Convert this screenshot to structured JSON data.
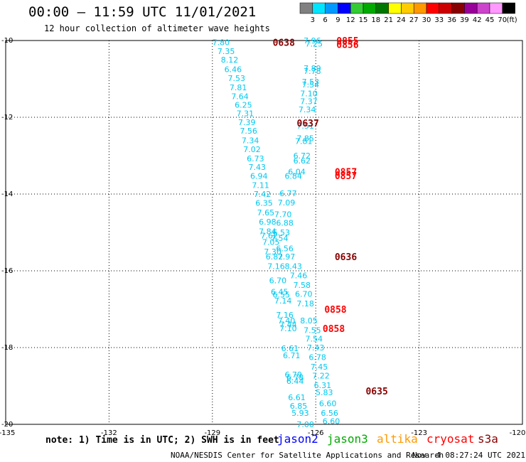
{
  "header": {
    "title": "00:00 – 11:59 UTC 11/01/2021",
    "subtitle": "12 hour collection of altimeter wave heights"
  },
  "legend": {
    "unit": "(ft)",
    "bins": [
      {
        "label": "3",
        "color": "#808080"
      },
      {
        "label": "6",
        "color": "#00e5ff"
      },
      {
        "label": "9",
        "color": "#0099ff"
      },
      {
        "label": "12",
        "color": "#0000ff"
      },
      {
        "label": "15",
        "color": "#33cc33"
      },
      {
        "label": "18",
        "color": "#00aa00"
      },
      {
        "label": "21",
        "color": "#007700"
      },
      {
        "label": "24",
        "color": "#ffff00"
      },
      {
        "label": "27",
        "color": "#ffcc00"
      },
      {
        "label": "30",
        "color": "#ff9900"
      },
      {
        "label": "33",
        "color": "#ff0000"
      },
      {
        "label": "36",
        "color": "#cc0000"
      },
      {
        "label": "39",
        "color": "#880000"
      },
      {
        "label": "42",
        "color": "#990099"
      },
      {
        "label": "45",
        "color": "#cc44cc"
      },
      {
        "label": "70",
        "color": "#ff99ff"
      },
      {
        "label": "",
        "color": "#000000"
      }
    ]
  },
  "footer": {
    "note": "note: 1) Time is in UTC; 2) SWH is in feet",
    "satellites": [
      {
        "name": "jason2",
        "color": "#0000ff"
      },
      {
        "name": "jason3",
        "color": "#00aa00"
      },
      {
        "name": "altika",
        "color": "#ff9900"
      },
      {
        "name": "cryosat",
        "color": "#ff0000"
      },
      {
        "name": "s3a",
        "color": "#880000"
      }
    ],
    "credit": "NOAA/NESDIS Center for Satellite Applications and Research",
    "timestamp": "Nov  4 08:27:24 UTC 2021"
  },
  "chart_data": {
    "type": "scatter",
    "title": "00:00 – 11:59 UTC 11/01/2021",
    "subtitle": "12 hour collection of altimeter wave heights",
    "xlim": [
      -135,
      -120
    ],
    "ylim": [
      -20,
      -10
    ],
    "x_ticks": [
      "-135",
      "-132",
      "-129",
      "-126",
      "-123",
      "-120"
    ],
    "y_ticks": [
      "-10",
      "-12",
      "-14",
      "-16",
      "-18",
      "-20"
    ],
    "grid": true,
    "value_color": "#00c8f0",
    "series": [
      {
        "points": [
          {
            "x": -128.75,
            "y": -10.05,
            "v": "7.80"
          },
          {
            "x": -128.6,
            "y": -10.28,
            "v": "7.35"
          },
          {
            "x": -128.5,
            "y": -10.5,
            "v": "8.12"
          },
          {
            "x": -128.4,
            "y": -10.75,
            "v": "6.46"
          },
          {
            "x": -128.3,
            "y": -10.98,
            "v": "7.53"
          },
          {
            "x": -128.25,
            "y": -11.22,
            "v": "7.81"
          },
          {
            "x": -128.2,
            "y": -11.45,
            "v": "7.64"
          },
          {
            "x": -128.1,
            "y": -11.68,
            "v": "6.25"
          },
          {
            "x": -128.05,
            "y": -11.9,
            "v": "7.31"
          },
          {
            "x": -128.0,
            "y": -12.13,
            "v": "7.39"
          },
          {
            "x": -127.95,
            "y": -12.35,
            "v": "7.56"
          },
          {
            "x": -127.9,
            "y": -12.6,
            "v": "7.34"
          },
          {
            "x": -127.85,
            "y": -12.83,
            "v": "7.02"
          },
          {
            "x": -127.75,
            "y": -13.07,
            "v": "6.73"
          },
          {
            "x": -127.7,
            "y": -13.3,
            "v": "7.43"
          },
          {
            "x": -127.65,
            "y": -13.53,
            "v": "6.94"
          },
          {
            "x": -127.6,
            "y": -13.77,
            "v": "7.11"
          },
          {
            "x": -127.55,
            "y": -14.0,
            "v": "7.42"
          },
          {
            "x": -127.5,
            "y": -14.23,
            "v": "6.35"
          },
          {
            "x": -127.45,
            "y": -14.48,
            "v": "7.65"
          },
          {
            "x": -127.4,
            "y": -14.72,
            "v": "6.98"
          },
          {
            "x": -127.4,
            "y": -14.97,
            "v": "7.84"
          },
          {
            "x": -127.35,
            "y": -15.08,
            "v": "7.62"
          },
          {
            "x": -127.3,
            "y": -15.25,
            "v": "7.05"
          },
          {
            "x": -127.25,
            "y": -15.5,
            "v": "7.30"
          },
          {
            "x": -127.2,
            "y": -15.63,
            "v": "6.82"
          },
          {
            "x": -127.15,
            "y": -15.88,
            "v": "7.16"
          },
          {
            "x": -127.1,
            "y": -16.25,
            "v": "6.70"
          },
          {
            "x": -127.05,
            "y": -16.55,
            "v": "6.45"
          },
          {
            "x": -127.0,
            "y": -16.62,
            "v": "6.55"
          },
          {
            "x": -126.95,
            "y": -16.78,
            "v": "7.14"
          },
          {
            "x": -126.9,
            "y": -17.15,
            "v": "7.16"
          },
          {
            "x": -126.85,
            "y": -17.3,
            "v": "7.40"
          },
          {
            "x": -126.8,
            "y": -17.4,
            "v": "7.44"
          },
          {
            "x": -126.8,
            "y": -17.5,
            "v": "7.10"
          },
          {
            "x": -126.75,
            "y": -18.02,
            "v": "6.61"
          },
          {
            "x": -126.7,
            "y": -18.2,
            "v": "6.71"
          },
          {
            "x": -126.65,
            "y": -18.7,
            "v": "6.79"
          },
          {
            "x": -126.6,
            "y": -18.78,
            "v": "6.78"
          },
          {
            "x": -126.6,
            "y": -18.87,
            "v": "6.44"
          },
          {
            "x": -126.55,
            "y": -19.3,
            "v": "6.61"
          },
          {
            "x": -126.5,
            "y": -19.52,
            "v": "6.85"
          },
          {
            "x": -126.45,
            "y": -19.7,
            "v": "5.93"
          },
          {
            "x": -126.3,
            "y": -20.0,
            "v": "7.00"
          },
          {
            "x": -126.1,
            "y": -10.0,
            "v": "7.96"
          },
          {
            "x": -126.05,
            "y": -10.08,
            "v": "7.25"
          },
          {
            "x": -126.1,
            "y": -10.72,
            "v": "7.89"
          },
          {
            "x": -126.1,
            "y": -10.8,
            "v": "7.78"
          },
          {
            "x": -126.15,
            "y": -11.07,
            "v": "7.53"
          },
          {
            "x": -126.15,
            "y": -11.15,
            "v": "7.54"
          },
          {
            "x": -126.2,
            "y": -11.38,
            "v": "7.10"
          },
          {
            "x": -126.2,
            "y": -11.58,
            "v": "7.37"
          },
          {
            "x": -126.25,
            "y": -11.8,
            "v": "7.34"
          },
          {
            "x": -126.3,
            "y": -12.22,
            "v": "7.51"
          },
          {
            "x": -126.3,
            "y": -12.55,
            "v": "7.85"
          },
          {
            "x": -126.35,
            "y": -12.62,
            "v": "7.81"
          },
          {
            "x": -126.4,
            "y": -13.0,
            "v": "6.72"
          },
          {
            "x": -126.4,
            "y": -13.13,
            "v": "6.62"
          },
          {
            "x": -126.55,
            "y": -13.42,
            "v": "6.04"
          },
          {
            "x": -126.65,
            "y": -13.53,
            "v": "6.84"
          },
          {
            "x": -126.8,
            "y": -13.98,
            "v": "6.77"
          },
          {
            "x": -126.85,
            "y": -14.22,
            "v": "7.09"
          },
          {
            "x": -126.95,
            "y": -14.53,
            "v": "7.70"
          },
          {
            "x": -126.9,
            "y": -14.75,
            "v": "6.88"
          },
          {
            "x": -127.0,
            "y": -15.0,
            "v": "6.53"
          },
          {
            "x": -127.05,
            "y": -15.15,
            "v": "7.54"
          },
          {
            "x": -126.9,
            "y": -15.42,
            "v": "6.56"
          },
          {
            "x": -126.85,
            "y": -15.63,
            "v": "7.97"
          },
          {
            "x": -126.65,
            "y": -15.88,
            "v": "8.43"
          },
          {
            "x": -126.5,
            "y": -16.12,
            "v": "7.46"
          },
          {
            "x": -126.4,
            "y": -16.37,
            "v": "7.58"
          },
          {
            "x": -126.35,
            "y": -16.6,
            "v": "6.70"
          },
          {
            "x": -126.3,
            "y": -16.85,
            "v": "7.18"
          },
          {
            "x": -126.2,
            "y": -17.3,
            "v": "8.05"
          },
          {
            "x": -126.1,
            "y": -17.55,
            "v": "7.55"
          },
          {
            "x": -126.05,
            "y": -17.77,
            "v": "7.54"
          },
          {
            "x": -126.0,
            "y": -18.0,
            "v": "7.43"
          },
          {
            "x": -125.95,
            "y": -18.25,
            "v": "6.78"
          },
          {
            "x": -125.9,
            "y": -18.5,
            "v": "7.45"
          },
          {
            "x": -125.85,
            "y": -18.73,
            "v": "7.22"
          },
          {
            "x": -125.8,
            "y": -18.98,
            "v": "6.31"
          },
          {
            "x": -125.75,
            "y": -19.17,
            "v": "5.83"
          },
          {
            "x": -125.65,
            "y": -19.45,
            "v": "6.60"
          },
          {
            "x": -125.6,
            "y": -19.7,
            "v": "6.56"
          },
          {
            "x": -125.55,
            "y": -19.92,
            "v": "6.60"
          }
        ]
      }
    ],
    "time_labels": [
      {
        "x": -127.25,
        "y": -10.05,
        "text": "0638",
        "color": "#880000"
      },
      {
        "x": -125.4,
        "y": -10.0,
        "text": "0855",
        "color": "#ff0000"
      },
      {
        "x": -125.4,
        "y": -10.1,
        "text": "0856",
        "color": "#ff0000"
      },
      {
        "x": -126.55,
        "y": -12.15,
        "text": "0637",
        "color": "#880000"
      },
      {
        "x": -125.45,
        "y": -13.42,
        "text": "0857",
        "color": "#ff0000"
      },
      {
        "x": -125.45,
        "y": -13.52,
        "text": "0857",
        "color": "#ff0000"
      },
      {
        "x": -125.45,
        "y": -15.63,
        "text": "0636",
        "color": "#880000"
      },
      {
        "x": -125.75,
        "y": -17.0,
        "text": "0858",
        "color": "#ff0000"
      },
      {
        "x": -125.8,
        "y": -17.5,
        "text": "0858",
        "color": "#ff0000"
      },
      {
        "x": -124.55,
        "y": -19.13,
        "text": "0635",
        "color": "#880000"
      }
    ]
  }
}
